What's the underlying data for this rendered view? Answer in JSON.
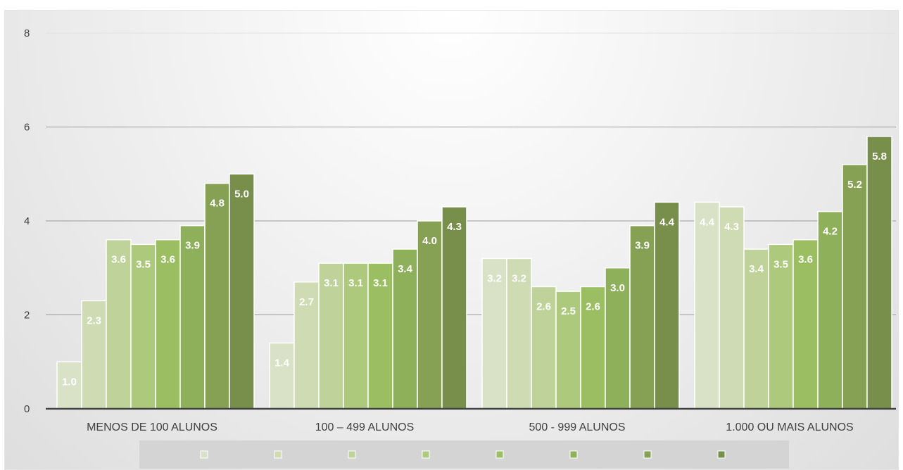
{
  "chart_data": {
    "type": "bar",
    "categories": [
      "MENOS DE 100 ALUNOS",
      "100 – 499 ALUNOS",
      "500 - 999 ALUNOS",
      "1.000 OU MAIS ALUNOS"
    ],
    "series": [
      {
        "values": [
          1.0,
          1.4,
          3.2,
          4.4
        ],
        "color": "#d9e2c6"
      },
      {
        "values": [
          2.3,
          2.7,
          3.2,
          4.3
        ],
        "color": "#cedbb3"
      },
      {
        "values": [
          3.6,
          3.1,
          2.6,
          3.4
        ],
        "color": "#bed29a"
      },
      {
        "values": [
          3.5,
          3.1,
          2.5,
          3.5
        ],
        "color": "#acc97c"
      },
      {
        "values": [
          3.6,
          3.1,
          2.6,
          3.6
        ],
        "color": "#9bbe63"
      },
      {
        "values": [
          3.9,
          3.4,
          3.0,
          4.2
        ],
        "color": "#8fb05a"
      },
      {
        "values": [
          4.8,
          4.0,
          3.9,
          5.2
        ],
        "color": "#86a153"
      },
      {
        "values": [
          5.0,
          4.3,
          4.4,
          5.8
        ],
        "color": "#778f4a"
      }
    ],
    "ylim": [
      0,
      8
    ],
    "yticks": [
      0,
      2,
      4,
      6,
      8
    ],
    "grid": true,
    "legend": "bottom",
    "data_labels": true
  }
}
